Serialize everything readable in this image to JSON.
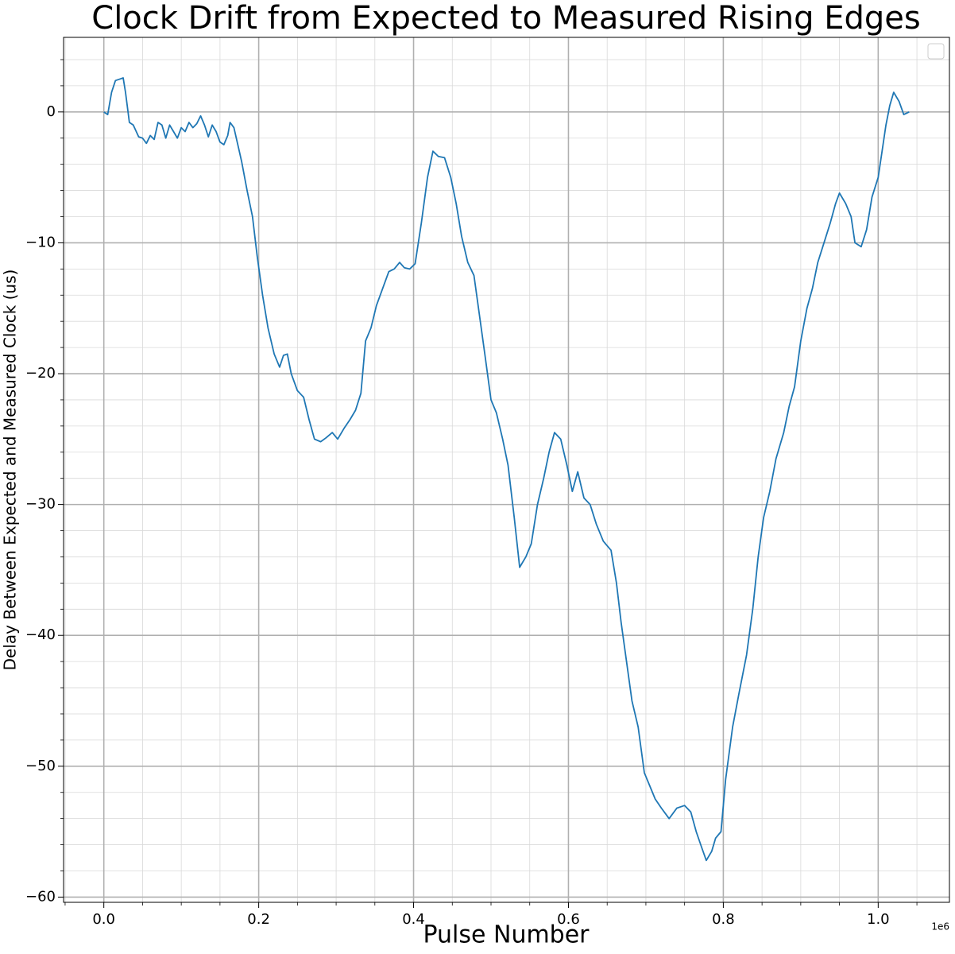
{
  "chart_data": {
    "type": "line",
    "title": "Clock Drift from Expected to Measured Rising Edges",
    "x_label": "Pulse Number",
    "y_label": "Delay Between Expected and Measured Clock (us)",
    "x_offset_label": "1e6",
    "color": "#1f77b4",
    "grid": true,
    "legend": "upper right",
    "xlim": [
      -52000,
      1092000
    ],
    "ylim": [
      -60.4,
      5.7
    ],
    "xticks": [
      {
        "value": 0,
        "label": "0.0"
      },
      {
        "value": 200000,
        "label": "0.2"
      },
      {
        "value": 400000,
        "label": "0.4"
      },
      {
        "value": 600000,
        "label": "0.6"
      },
      {
        "value": 800000,
        "label": "0.8"
      },
      {
        "value": 1000000,
        "label": "1.0"
      }
    ],
    "yticks": [
      0,
      {
        "value": -10,
        "label": "−10"
      },
      {
        "value": -20,
        "label": "−20"
      },
      {
        "value": -30,
        "label": "−30"
      },
      {
        "value": -40,
        "label": "−40"
      },
      {
        "value": -50,
        "label": "−50"
      },
      {
        "value": -60,
        "label": "−60"
      }
    ],
    "xminorticks": [
      -50000,
      50000,
      100000,
      150000,
      250000,
      300000,
      350000,
      450000,
      500000,
      550000,
      650000,
      700000,
      750000,
      850000,
      900000,
      950000,
      1050000
    ],
    "yminorticks": [
      4,
      2,
      -2,
      -4,
      -6,
      -8,
      -12,
      -14,
      -16,
      -18,
      -22,
      -24,
      -26,
      -28,
      -32,
      -34,
      -36,
      -38,
      -42,
      -44,
      -46,
      -48,
      -52,
      -54,
      -56,
      -58
    ],
    "x": [
      0,
      5000,
      10000,
      15000,
      20000,
      25000,
      28000,
      33000,
      38000,
      45000,
      50000,
      55000,
      60000,
      65000,
      70000,
      75000,
      80000,
      85000,
      90000,
      95000,
      100000,
      105000,
      110000,
      115000,
      120000,
      125000,
      130000,
      135000,
      140000,
      145000,
      150000,
      155000,
      160000,
      163000,
      168000,
      173000,
      178000,
      185000,
      192000,
      198000,
      205000,
      212000,
      220000,
      227000,
      232000,
      237000,
      242000,
      250000,
      258000,
      265000,
      272000,
      280000,
      287000,
      295000,
      302000,
      310000,
      318000,
      325000,
      332000,
      338000,
      345000,
      352000,
      360000,
      368000,
      375000,
      382000,
      388000,
      395000,
      402000,
      410000,
      418000,
      425000,
      432000,
      440000,
      448000,
      455000,
      462000,
      470000,
      478000,
      485000,
      492000,
      500000,
      507000,
      515000,
      522000,
      530000,
      537000,
      545000,
      552000,
      560000,
      568000,
      575000,
      582000,
      590000,
      598000,
      605000,
      612000,
      620000,
      628000,
      636000,
      645000,
      655000,
      662000,
      668000,
      675000,
      682000,
      690000,
      698000,
      705000,
      712000,
      720000,
      730000,
      740000,
      750000,
      758000,
      765000,
      772000,
      778000,
      785000,
      790000,
      797000,
      803000,
      812000,
      820000,
      830000,
      838000,
      845000,
      852000,
      860000,
      868000,
      878000,
      885000,
      892000,
      900000,
      908000,
      915000,
      922000,
      930000,
      938000,
      945000,
      950000,
      958000,
      965000,
      970000,
      978000,
      985000,
      992000,
      1000000,
      1005000,
      1010000,
      1015000,
      1020000,
      1027000,
      1033000,
      1040000
    ],
    "values": [
      0,
      -0.2,
      1.5,
      2.4,
      2.5,
      2.6,
      1.5,
      -0.8,
      -1.0,
      -1.9,
      -2.0,
      -2.4,
      -1.8,
      -2.1,
      -0.8,
      -1.0,
      -2.0,
      -1.0,
      -1.5,
      -2.0,
      -1.2,
      -1.5,
      -0.8,
      -1.2,
      -0.9,
      -0.3,
      -1.0,
      -1.9,
      -1.0,
      -1.5,
      -2.3,
      -2.5,
      -1.8,
      -0.8,
      -1.2,
      -2.5,
      -3.8,
      -6.0,
      -8.0,
      -11.0,
      -14.0,
      -16.5,
      -18.5,
      -19.5,
      -18.6,
      -18.5,
      -20.0,
      -21.3,
      -21.8,
      -23.5,
      -25.0,
      -25.2,
      -24.9,
      -24.5,
      -25.0,
      -24.2,
      -23.5,
      -22.8,
      -21.5,
      -17.5,
      -16.5,
      -14.8,
      -13.5,
      -12.2,
      -12.0,
      -11.5,
      -11.9,
      -12.0,
      -11.6,
      -8.5,
      -5.0,
      -3.0,
      -3.4,
      -3.5,
      -5.0,
      -7.0,
      -9.5,
      -11.5,
      -12.5,
      -15.5,
      -18.5,
      -22.0,
      -23.0,
      -25.0,
      -27.0,
      -31.0,
      -34.8,
      -34.0,
      -33.0,
      -30.0,
      -28.0,
      -26.0,
      -24.5,
      -25.0,
      -27.0,
      -29.0,
      -27.5,
      -29.5,
      -30.0,
      -31.5,
      -32.8,
      -33.5,
      -36.0,
      -39.0,
      -42.0,
      -45.0,
      -47.0,
      -50.5,
      -51.5,
      -52.5,
      -53.2,
      -54.0,
      -53.2,
      -53.0,
      -53.5,
      -55.0,
      -56.2,
      -57.2,
      -56.5,
      -55.5,
      -55.0,
      -51.0,
      -47.0,
      -44.5,
      -41.5,
      -38.0,
      -34.0,
      -31.0,
      -29.0,
      -26.5,
      -24.5,
      -22.5,
      -21.0,
      -17.5,
      -15.0,
      -13.5,
      -11.5,
      -10.0,
      -8.5,
      -7.0,
      -6.2,
      -7.0,
      -8.0,
      -10.0,
      -10.3,
      -9.0,
      -6.5,
      -5.0,
      -3.0,
      -1.0,
      0.5,
      1.5,
      0.8,
      -0.2,
      0
    ]
  }
}
